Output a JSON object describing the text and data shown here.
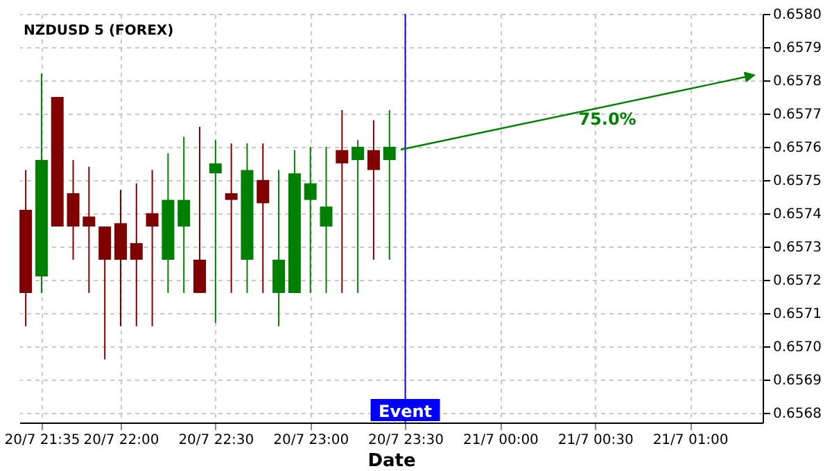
{
  "chart_data": {
    "type": "candlestick",
    "title": "NZDUSD 5 (FOREX)",
    "xlabel": "Date",
    "x": [
      "--07-20T21:30",
      "--07-20T21:35",
      "--07-20T21:40",
      "--07-20T21:45",
      "--07-20T21:50",
      "--07-20T21:55",
      "--07-20T22:00",
      "--07-20T22:05",
      "--07-20T22:10",
      "--07-20T22:15",
      "--07-20T22:20",
      "--07-20T22:25",
      "--07-20T22:30",
      "--07-20T22:35",
      "--07-20T22:40",
      "--07-20T22:45",
      "--07-20T22:50",
      "--07-20T22:55",
      "--07-20T23:00",
      "--07-20T23:05",
      "--07-20T23:10",
      "--07-20T23:15",
      "--07-20T23:20",
      "--07-20T23:25"
    ],
    "ohlc": [
      [
        0.65741,
        0.65753,
        0.65706,
        0.65716
      ],
      [
        0.65721,
        0.65782,
        0.65716,
        0.65756
      ],
      [
        0.65775,
        0.65775,
        0.65736,
        0.65736
      ],
      [
        0.65746,
        0.65756,
        0.65726,
        0.65736
      ],
      [
        0.65739,
        0.65754,
        0.65716,
        0.65736
      ],
      [
        0.65736,
        0.65736,
        0.65696,
        0.65726
      ],
      [
        0.65737,
        0.65747,
        0.65706,
        0.65726
      ],
      [
        0.65731,
        0.65749,
        0.65706,
        0.65726
      ],
      [
        0.6574,
        0.65753,
        0.65706,
        0.65736
      ],
      [
        0.65726,
        0.65758,
        0.65716,
        0.65744
      ],
      [
        0.65736,
        0.65763,
        0.65716,
        0.65744
      ],
      [
        0.65726,
        0.65766,
        0.65716,
        0.65716
      ],
      [
        0.65752,
        0.65762,
        0.65707,
        0.65755
      ],
      [
        0.65746,
        0.65761,
        0.65716,
        0.65744
      ],
      [
        0.65726,
        0.65761,
        0.65716,
        0.65753
      ],
      [
        0.6575,
        0.65761,
        0.65716,
        0.65743
      ],
      [
        0.65716,
        0.65753,
        0.65706,
        0.65726
      ],
      [
        0.65716,
        0.65759,
        0.65716,
        0.65752
      ],
      [
        0.65744,
        0.6576,
        0.65716,
        0.65749
      ],
      [
        0.65736,
        0.6576,
        0.65716,
        0.65742
      ],
      [
        0.65759,
        0.65771,
        0.65716,
        0.65755
      ],
      [
        0.65756,
        0.65762,
        0.65716,
        0.6576
      ],
      [
        0.65759,
        0.65768,
        0.65726,
        0.65753
      ],
      [
        0.65756,
        0.65771,
        0.65726,
        0.6576
      ]
    ],
    "colors": [
      "#800000",
      "#008000",
      "#800000",
      "#800000",
      "#800000",
      "#800000",
      "#800000",
      "#800000",
      "#800000",
      "#008000",
      "#008000",
      "#800000",
      "#008000",
      "#800000",
      "#008000",
      "#800000",
      "#008000",
      "#008000",
      "#008000",
      "#008000",
      "#800000",
      "#008000",
      "#800000",
      "#008000"
    ],
    "ref_lines": [
      {
        "axis": "x",
        "value": "--07-20T23:30",
        "label": "Event",
        "color": "#0000ff"
      }
    ],
    "annotations": [
      "75.0%"
    ],
    "xlim": [
      "--07-20T21:28",
      "--07-21T01:23"
    ],
    "xticks": [
      {
        "value": "--07-20T21:35",
        "label": "20/7 21:35"
      },
      {
        "value": "--07-20T22:00",
        "label": "20/7 22:00"
      },
      {
        "value": "--07-20T22:30",
        "label": "20/7 22:30"
      },
      {
        "value": "--07-20T23:00",
        "label": "20/7 23:00"
      },
      {
        "value": "--07-20T23:30",
        "label": "20/7 23:30"
      },
      {
        "value": "--07-21T00:00",
        "label": "21/7 00:00"
      },
      {
        "value": "--07-21T00:30",
        "label": "21/7 00:30"
      },
      {
        "value": "--07-21T01:00",
        "label": "21/7 01:00"
      }
    ],
    "ylim": [
      0.65677,
      0.658
    ],
    "yticks": [
      0.6568,
      0.6569,
      {
        "value": 0.657,
        "label": "0.6570"
      },
      0.6571,
      0.6572,
      0.6573,
      0.6574,
      0.6575,
      0.6576,
      0.6577,
      0.6578,
      0.6579,
      {
        "value": 0.658,
        "label": "0.6580"
      }
    ],
    "grid": true
  }
}
